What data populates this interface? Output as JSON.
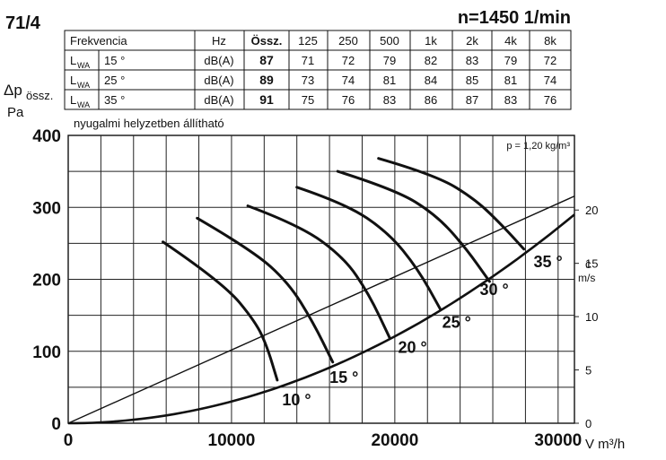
{
  "header": {
    "model": "71/4",
    "speed": "n=1450 1/min",
    "note": "nyugalmi helyzetben állítható",
    "density": "p = 1,20 kg/m³"
  },
  "table": {
    "headers": [
      "Frekvencia",
      "",
      "Hz",
      "Össz.",
      "125",
      "250",
      "500",
      "1k",
      "2k",
      "4k",
      "8k"
    ],
    "rows": [
      {
        "label": "L",
        "sub": "WA",
        "angle": "15 °",
        "unit": "dB(A)",
        "total": "87",
        "values": [
          "71",
          "72",
          "79",
          "82",
          "83",
          "79",
          "72"
        ]
      },
      {
        "label": "L",
        "sub": "WA",
        "angle": "25 °",
        "unit": "dB(A)",
        "total": "89",
        "values": [
          "73",
          "74",
          "81",
          "84",
          "85",
          "81",
          "74"
        ]
      },
      {
        "label": "L",
        "sub": "WA",
        "angle": "35 °",
        "unit": "dB(A)",
        "total": "91",
        "values": [
          "75",
          "76",
          "83",
          "86",
          "87",
          "83",
          "76"
        ]
      }
    ]
  },
  "chart_data": {
    "type": "line",
    "xlabel": "V m³/h",
    "ylabel_main": "Δp",
    "ylabel_sub": "össz.",
    "ylabel_unit": "Pa",
    "y2label": "c",
    "y2unit": "m/s",
    "xlim": [
      0,
      31000
    ],
    "ylim": [
      0,
      400
    ],
    "xticks": [
      0,
      10000,
      20000,
      30000
    ],
    "xtick_labels": [
      "0",
      "10000",
      "20000",
      "30000"
    ],
    "yticks": [
      0,
      100,
      200,
      300,
      400
    ],
    "ytick_labels": [
      "0",
      "100",
      "200",
      "300",
      "400"
    ],
    "y2_max": 27,
    "y2ticks": [
      0,
      5,
      10,
      15,
      20
    ],
    "y2tick_labels": [
      "0",
      "5",
      "10",
      "15",
      "20"
    ],
    "grid": true,
    "series": [
      {
        "name": "10 °",
        "points": [
          [
            5800,
            252
          ],
          [
            9500,
            195
          ],
          [
            11500,
            140
          ],
          [
            12200,
            105
          ],
          [
            12800,
            60
          ]
        ]
      },
      {
        "name": "15 °",
        "points": [
          [
            7900,
            285
          ],
          [
            11300,
            240
          ],
          [
            13500,
            195
          ],
          [
            15000,
            140
          ],
          [
            16200,
            85
          ]
        ]
      },
      {
        "name": "20 °",
        "points": [
          [
            11000,
            302
          ],
          [
            14200,
            275
          ],
          [
            16900,
            230
          ],
          [
            18400,
            180
          ],
          [
            19700,
            118
          ]
        ]
      },
      {
        "name": "25 °",
        "points": [
          [
            14000,
            328
          ],
          [
            17000,
            305
          ],
          [
            19600,
            265
          ],
          [
            21400,
            215
          ],
          [
            22800,
            158
          ]
        ]
      },
      {
        "name": "30 °",
        "points": [
          [
            16500,
            350
          ],
          [
            20000,
            325
          ],
          [
            22500,
            290
          ],
          [
            24300,
            245
          ],
          [
            25800,
            197
          ]
        ]
      },
      {
        "name": "35 °",
        "points": [
          [
            19000,
            368
          ],
          [
            22500,
            345
          ],
          [
            25000,
            310
          ],
          [
            26700,
            272
          ],
          [
            27900,
            242
          ]
        ]
      }
    ],
    "angle_labels": [
      {
        "text": "10 °",
        "x": 13100,
        "y": 25
      },
      {
        "text": "15 °",
        "x": 16000,
        "y": 56
      },
      {
        "text": "20 °",
        "x": 20200,
        "y": 98
      },
      {
        "text": "25 °",
        "x": 22900,
        "y": 133
      },
      {
        "text": "30 °",
        "x": 25200,
        "y": 178
      },
      {
        "text": "35 °",
        "x": 28500,
        "y": 217
      }
    ],
    "system_curve": "Δp = k·V²",
    "velocity_line": "c vs V"
  }
}
